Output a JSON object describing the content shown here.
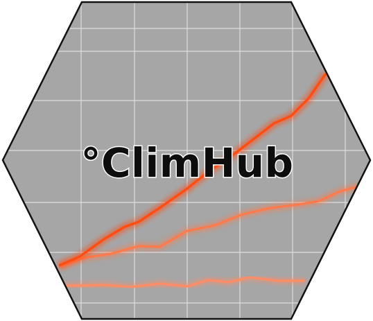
{
  "logo": {
    "wordmark": "°ClimHub",
    "colors": {
      "hexagon_fill": "#a6a6a6",
      "hexagon_stroke": "#111111",
      "grid": "#e6e6e6",
      "line_top": "#ff4d12",
      "line_mid": "#ff7a4a",
      "line_bottom": "#ff8d66",
      "wordmark": "#0d0d0d",
      "wordmark_outline": "#ffffff"
    }
  }
}
